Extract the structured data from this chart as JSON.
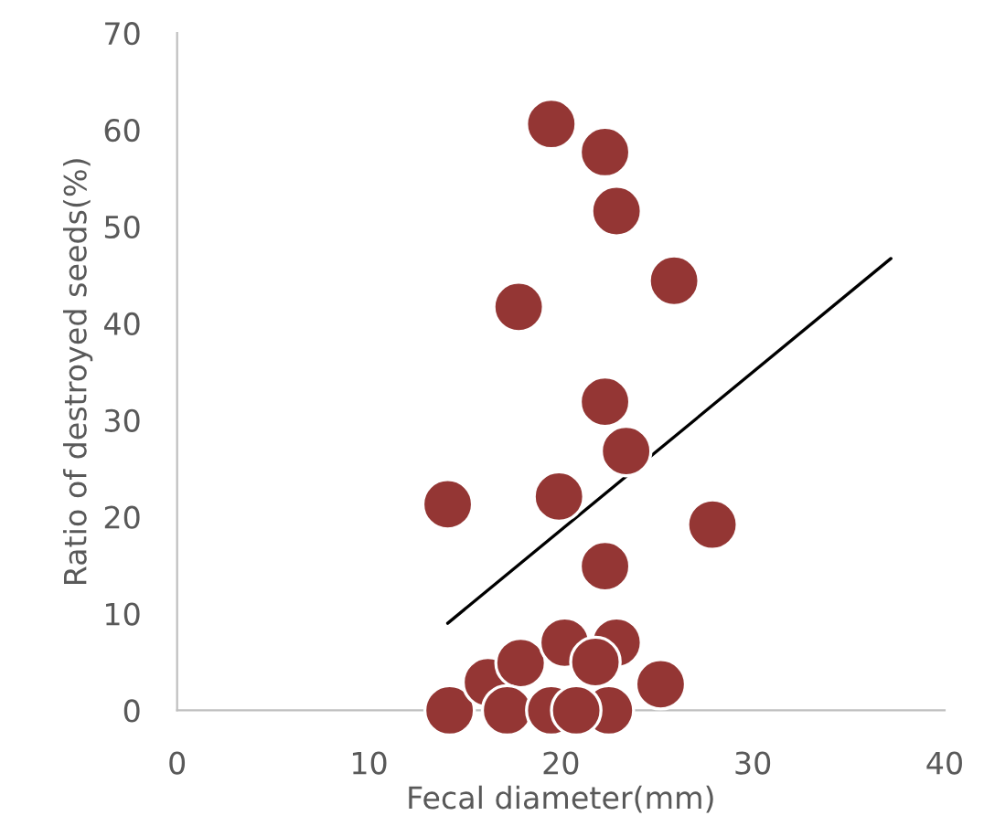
{
  "chart_data": {
    "type": "scatter",
    "xlabel": "Fecal diameter(mm)",
    "ylabel": "Ratio of destroyed seeds(%)",
    "xlim": [
      0,
      40
    ],
    "ylim": [
      0,
      70
    ],
    "xticks": [
      0,
      10,
      20,
      30,
      40
    ],
    "yticks": [
      0,
      10,
      20,
      30,
      40,
      50,
      60,
      70
    ],
    "series": [
      {
        "marker": "circle",
        "color": "#943634",
        "x": [
          19.5,
          22.3,
          22.9,
          25.9,
          17.8,
          22.3,
          23.4,
          14.1,
          19.9,
          27.9,
          22.3,
          14.2,
          16.2,
          17.9,
          20.2,
          22.9,
          17.2,
          19.5,
          22.5,
          21.8,
          25.2,
          20.8
        ],
        "values": [
          60.6,
          57.7,
          51.6,
          44.4,
          41.7,
          31.9,
          26.8,
          21.3,
          22.1,
          19.2,
          14.9,
          0,
          2.9,
          4.9,
          7.0,
          7.0,
          0,
          0,
          0,
          5.0,
          2.7,
          0
        ]
      },
      {
        "type": "line",
        "color": "#000000",
        "x": [
          14.1,
          37.2
        ],
        "values": [
          9.0,
          46.7
        ]
      }
    ]
  }
}
